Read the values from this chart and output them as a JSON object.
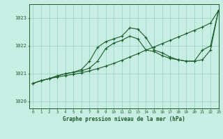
{
  "title": "Graphe pression niveau de la mer (hPa)",
  "bg_color": "#c8eee4",
  "grid_color": "#9ed4c8",
  "line_color": "#1a5c2a",
  "xlim": [
    -0.5,
    23
  ],
  "ylim": [
    1019.75,
    1023.5
  ],
  "yticks": [
    1020,
    1021,
    1022,
    1023
  ],
  "xticks": [
    0,
    1,
    2,
    3,
    4,
    5,
    6,
    7,
    8,
    9,
    10,
    11,
    12,
    13,
    14,
    15,
    16,
    17,
    18,
    19,
    20,
    21,
    22,
    23
  ],
  "series_straight": [
    1020.65,
    1020.75,
    1020.82,
    1020.88,
    1020.93,
    1020.98,
    1021.03,
    1021.1,
    1021.18,
    1021.27,
    1021.37,
    1021.48,
    1021.6,
    1021.72,
    1021.85,
    1021.96,
    1022.08,
    1022.2,
    1022.32,
    1022.44,
    1022.56,
    1022.68,
    1022.82,
    1023.28
  ],
  "series_mid": [
    1020.65,
    1020.75,
    1020.82,
    1020.92,
    1021.0,
    1021.05,
    1021.1,
    1021.2,
    1021.45,
    1021.9,
    1022.1,
    1022.2,
    1022.35,
    1022.25,
    1021.85,
    1021.8,
    1021.65,
    1021.55,
    1021.5,
    1021.45,
    1021.45,
    1021.5,
    1021.85,
    1023.28
  ],
  "series_top": [
    1020.65,
    1020.75,
    1020.82,
    1020.92,
    1021.0,
    1021.05,
    1021.15,
    1021.45,
    1021.95,
    1022.15,
    1022.25,
    1022.35,
    1022.65,
    1022.6,
    1022.3,
    1021.85,
    1021.75,
    1021.6,
    1021.5,
    1021.45,
    1021.45,
    1021.85,
    1022.0,
    1023.28
  ]
}
